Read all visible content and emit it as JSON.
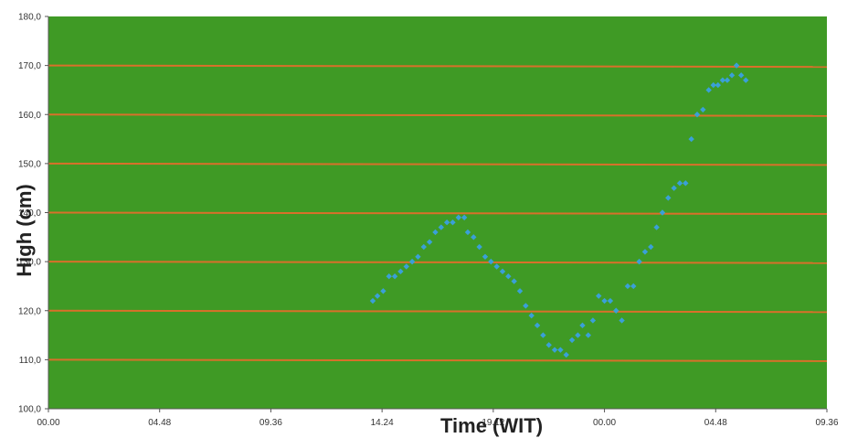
{
  "chart_data": {
    "type": "scatter",
    "title": "",
    "xlabel": "Time (WIT)",
    "ylabel": "High (cm)",
    "x_tick_labels": [
      "00.00",
      "04.48",
      "09.36",
      "14.24",
      "19.12",
      "00.00",
      "04.48",
      "09.36"
    ],
    "x_unit": "hours",
    "xlim": [
      0,
      33.6
    ],
    "ylim": [
      100,
      180
    ],
    "y_ticks": [
      100,
      110,
      120,
      130,
      140,
      150,
      160,
      170,
      180
    ],
    "y_tick_labels": [
      "100,0",
      "110,0",
      "120,0",
      "130,0",
      "140,0",
      "150,0",
      "160,0",
      "170,0",
      "180,0"
    ],
    "grid": true,
    "legend": "none",
    "colors": {
      "plot_background": "#3f9a25",
      "gridline": "#d9702a",
      "marker": "#3aa0d8",
      "axis": "#555555"
    },
    "series": [
      {
        "x": [
          14.0,
          14.2,
          14.45,
          14.7,
          14.95,
          15.2,
          15.45,
          15.7,
          15.95,
          16.2,
          16.45,
          16.7,
          16.95,
          17.2,
          17.45,
          17.7,
          17.95,
          18.1,
          18.35,
          18.6,
          18.85,
          19.1,
          19.35,
          19.6,
          19.85,
          20.1,
          20.35,
          20.6,
          20.85,
          21.1,
          21.35,
          21.6,
          21.85,
          22.1,
          22.35,
          22.6,
          22.85,
          23.05,
          23.3,
          23.5,
          23.75,
          24.0,
          24.25,
          24.5,
          24.75,
          25.0,
          25.25,
          25.5,
          25.75,
          26.0,
          26.25,
          26.5,
          26.75,
          27.0,
          27.25,
          27.5,
          27.75,
          28.0,
          28.25,
          28.5,
          28.7,
          28.9,
          29.1,
          29.3,
          29.5,
          29.7,
          29.9,
          30.1
        ],
        "y": [
          122,
          123,
          124,
          127,
          127,
          128,
          129,
          130,
          131,
          133,
          134,
          136,
          137,
          138,
          138,
          139,
          139,
          136,
          135,
          133,
          131,
          130,
          129,
          128,
          127,
          126,
          124,
          121,
          119,
          117,
          115,
          113,
          112,
          112,
          111,
          114,
          115,
          117,
          115,
          118,
          123,
          122,
          122,
          120,
          118,
          125,
          125,
          130,
          132,
          133,
          137,
          140,
          143,
          145,
          146,
          146,
          155,
          160,
          161,
          165,
          166,
          166,
          167,
          167,
          168,
          170,
          168,
          167
        ]
      }
    ]
  }
}
